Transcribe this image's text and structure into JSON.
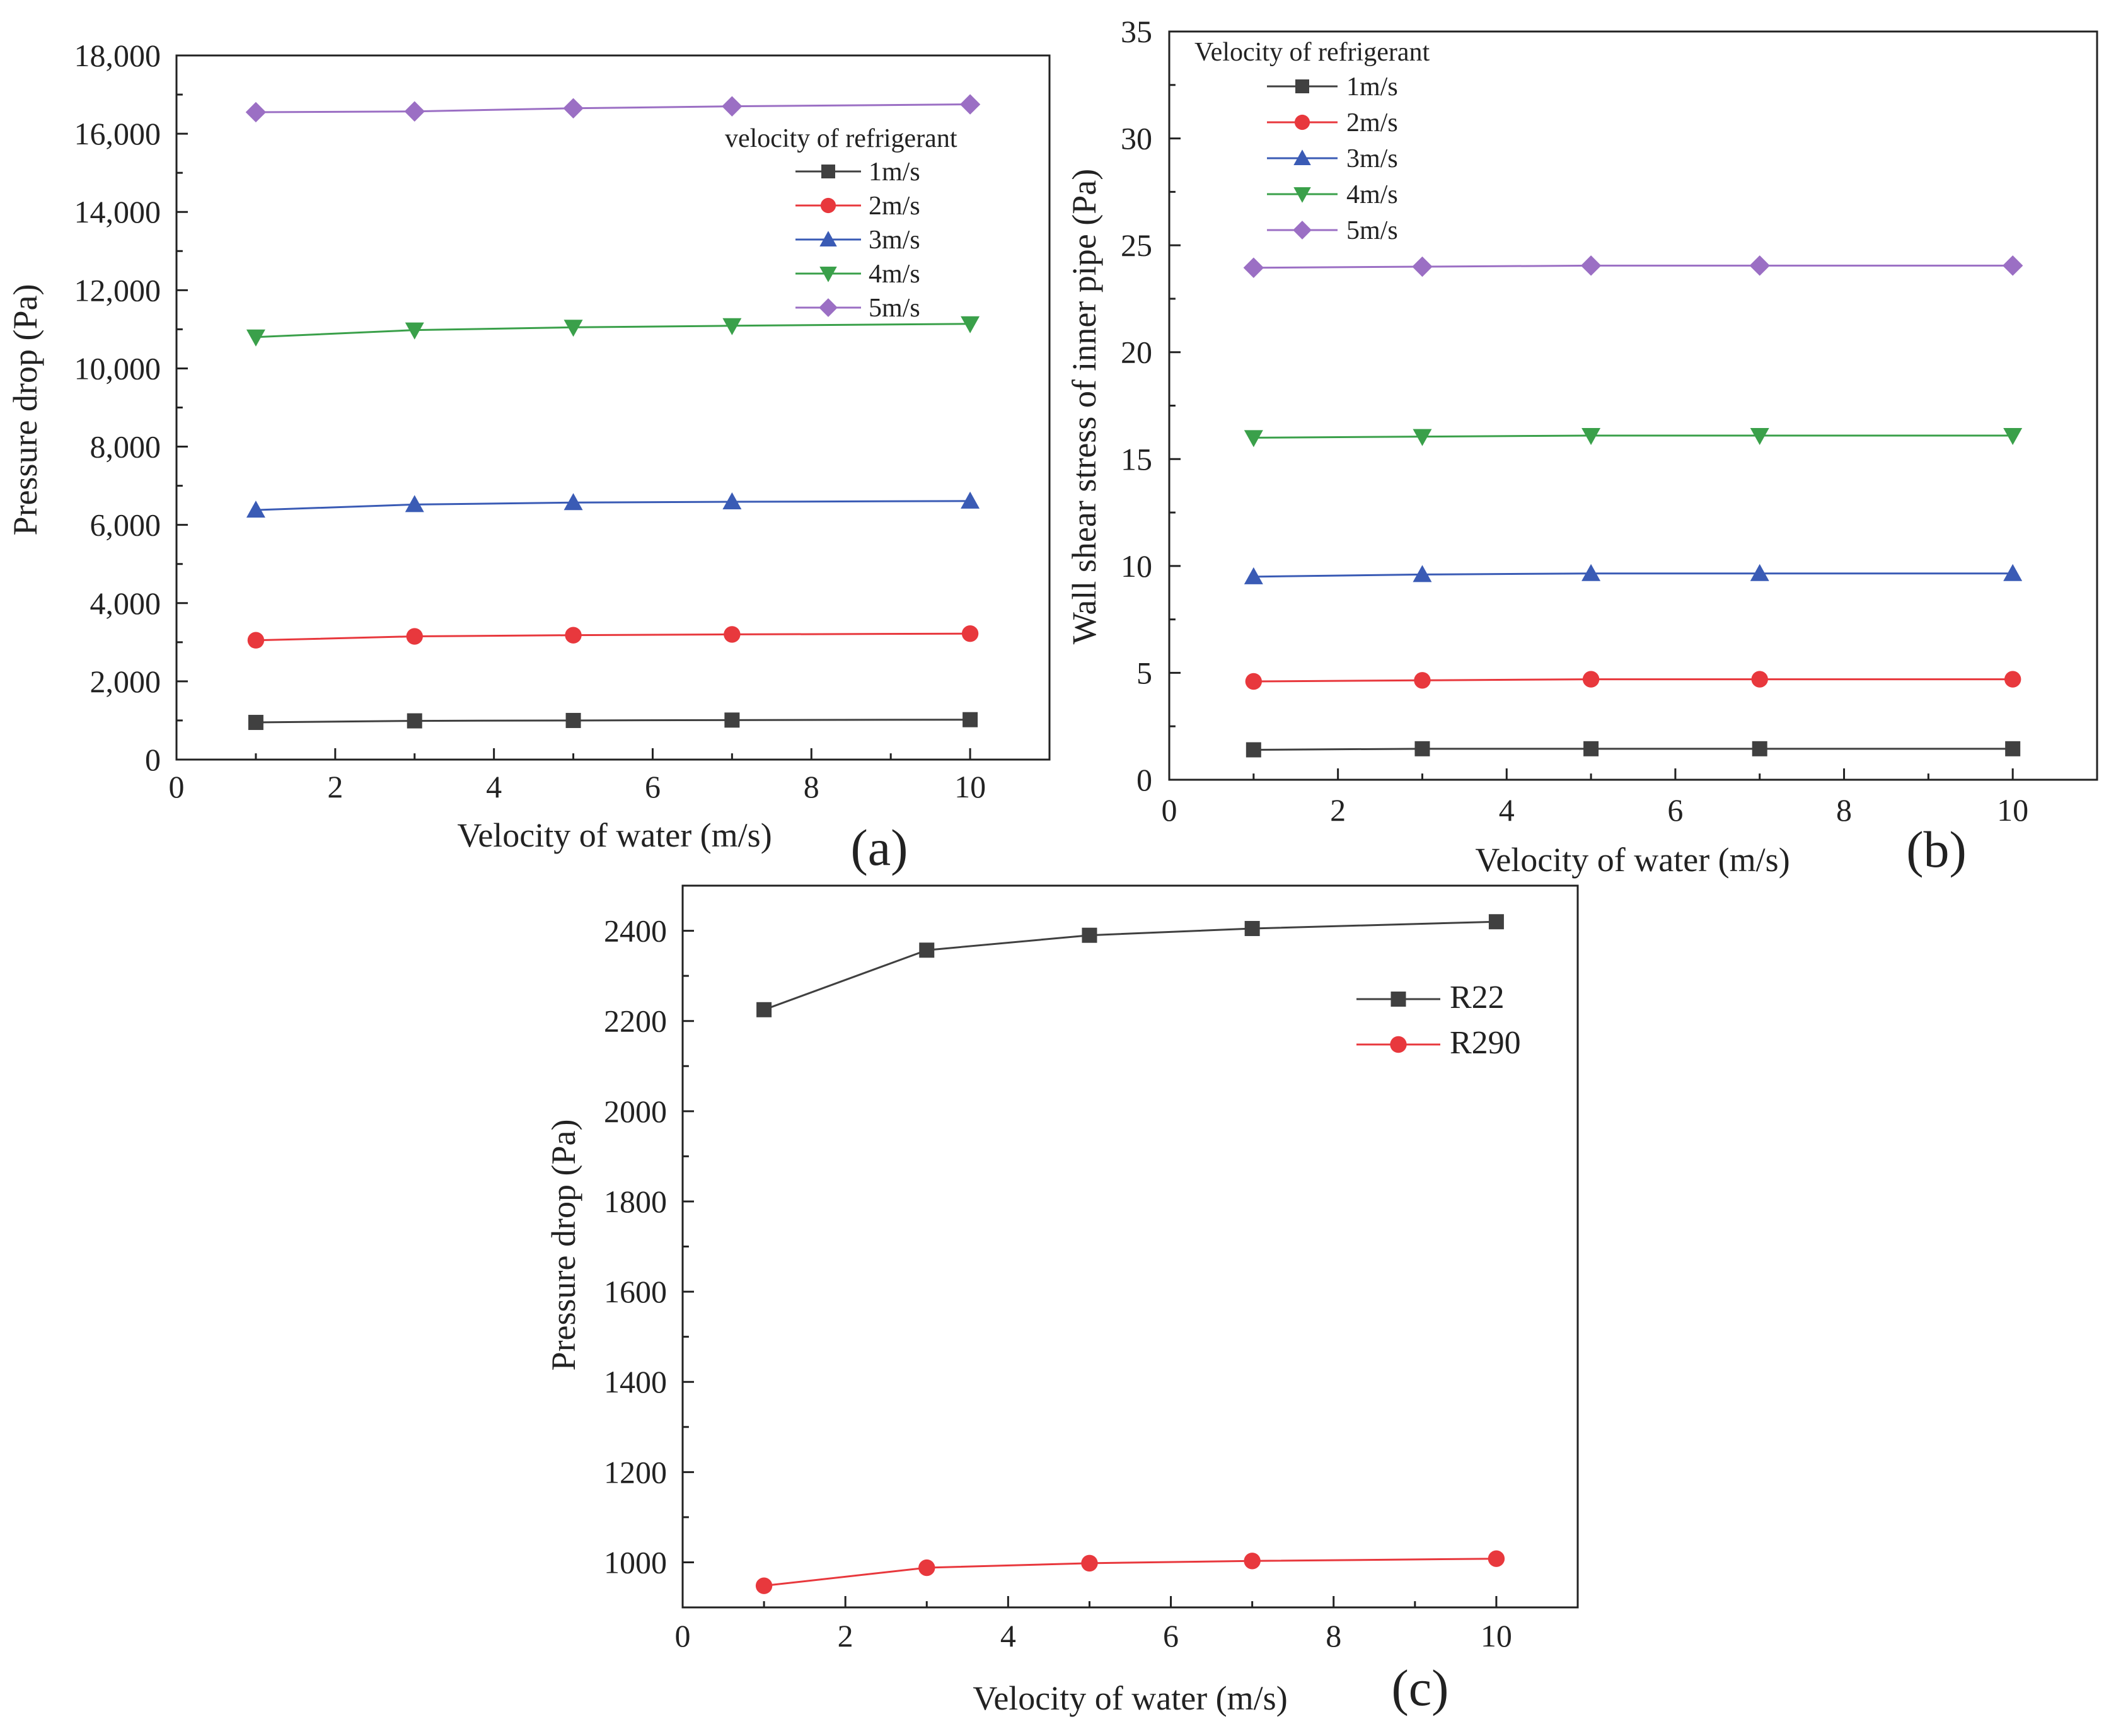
{
  "chart_data": [
    {
      "id": "a",
      "type": "line",
      "panel_label": "(a)",
      "title": "",
      "xlabel": "Velocity of water (m/s)",
      "ylabel": "Pressure drop (Pa)",
      "xlim": [
        0,
        11
      ],
      "ylim": [
        0,
        18000
      ],
      "xticks": [
        0,
        2,
        4,
        6,
        8,
        10
      ],
      "xtick_labels": [
        "0",
        "2",
        "4",
        "6",
        "8",
        "10"
      ],
      "yticks": [
        0,
        2000,
        4000,
        6000,
        8000,
        10000,
        12000,
        14000,
        16000,
        18000
      ],
      "ytick_labels": [
        "0",
        "2,000",
        "4,000",
        "6,000",
        "8,000",
        "10,000",
        "12,000",
        "14,000",
        "16,000",
        "18,000"
      ],
      "legend_title": "velocity of refrigerant",
      "legend_position": "top-right",
      "x": [
        1,
        3,
        5,
        7,
        10
      ],
      "series": [
        {
          "name": "1m/s",
          "values": [
            950,
            990,
            1000,
            1010,
            1020
          ],
          "color": "#404040",
          "marker": "square"
        },
        {
          "name": "2m/s",
          "values": [
            3050,
            3150,
            3180,
            3200,
            3220
          ],
          "color": "#e8383d",
          "marker": "circle"
        },
        {
          "name": "3m/s",
          "values": [
            6380,
            6520,
            6570,
            6590,
            6610
          ],
          "color": "#3a5bb5",
          "marker": "triangle-up"
        },
        {
          "name": "4m/s",
          "values": [
            10800,
            10980,
            11050,
            11090,
            11140
          ],
          "color": "#3aa04a",
          "marker": "triangle-down"
        },
        {
          "name": "5m/s",
          "values": [
            16550,
            16570,
            16650,
            16700,
            16750
          ],
          "color": "#9b6fc4",
          "marker": "diamond"
        }
      ]
    },
    {
      "id": "b",
      "type": "line",
      "panel_label": "(b)",
      "title": "",
      "xlabel": "Velocity of water (m/s)",
      "ylabel": "Wall shear stress of inner pipe (Pa)",
      "xlim": [
        0,
        11
      ],
      "ylim": [
        0,
        35
      ],
      "xticks": [
        0,
        2,
        4,
        6,
        8,
        10
      ],
      "xtick_labels": [
        "0",
        "2",
        "4",
        "6",
        "8",
        "10"
      ],
      "yticks": [
        0,
        5,
        10,
        15,
        20,
        25,
        30,
        35
      ],
      "ytick_labels": [
        "0",
        "5",
        "10",
        "15",
        "20",
        "25",
        "30",
        "35"
      ],
      "legend_title": "Velocity of refrigerant",
      "legend_position": "top-left",
      "x": [
        1,
        3,
        5,
        7,
        10
      ],
      "series": [
        {
          "name": "1m/s",
          "values": [
            1.4,
            1.45,
            1.45,
            1.45,
            1.45
          ],
          "color": "#404040",
          "marker": "square"
        },
        {
          "name": "2m/s",
          "values": [
            4.6,
            4.65,
            4.7,
            4.7,
            4.7
          ],
          "color": "#e8383d",
          "marker": "circle"
        },
        {
          "name": "3m/s",
          "values": [
            9.5,
            9.6,
            9.65,
            9.65,
            9.65
          ],
          "color": "#3a5bb5",
          "marker": "triangle-up"
        },
        {
          "name": "4m/s",
          "values": [
            16.0,
            16.05,
            16.1,
            16.1,
            16.1
          ],
          "color": "#3aa04a",
          "marker": "triangle-down"
        },
        {
          "name": "5m/s",
          "values": [
            23.95,
            24.0,
            24.05,
            24.05,
            24.05
          ],
          "color": "#9b6fc4",
          "marker": "diamond"
        }
      ]
    },
    {
      "id": "c",
      "type": "line",
      "panel_label": "(c)",
      "title": "",
      "xlabel": "Velocity of water (m/s)",
      "ylabel": "Pressure drop (Pa)",
      "xlim": [
        0,
        11
      ],
      "ylim": [
        900,
        2500
      ],
      "xticks": [
        0,
        2,
        4,
        6,
        8,
        10
      ],
      "xtick_labels": [
        "0",
        "2",
        "4",
        "6",
        "8",
        "10"
      ],
      "yticks": [
        1000,
        1200,
        1400,
        1600,
        1800,
        2000,
        2200,
        2400
      ],
      "ytick_labels": [
        "1000",
        "1200",
        "1400",
        "1600",
        "1800",
        "2000",
        "2200",
        "2400"
      ],
      "legend_title": "",
      "legend_position": "top-right",
      "x": [
        1,
        3,
        5,
        7,
        10
      ],
      "series": [
        {
          "name": "R22",
          "values": [
            2225,
            2357,
            2390,
            2405,
            2420
          ],
          "color": "#404040",
          "marker": "square"
        },
        {
          "name": "R290",
          "values": [
            948,
            988,
            998,
            1003,
            1008
          ],
          "color": "#e8383d",
          "marker": "circle"
        }
      ]
    }
  ]
}
